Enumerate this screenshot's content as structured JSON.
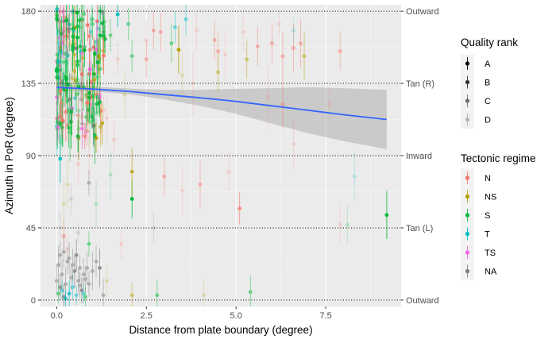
{
  "chart_data": {
    "type": "scatter",
    "xlabel": "Distance from plate boundary (degree)",
    "ylabel": "Azimuth in PoR (degree)",
    "xlim": [
      -0.45,
      9.6
    ],
    "ylim": [
      -4,
      184
    ],
    "x_ticks": [
      0.0,
      2.5,
      5.0,
      7.5
    ],
    "x_tick_labels": [
      "0.0",
      "2.5",
      "5.0",
      "7.5"
    ],
    "y_ticks": [
      0,
      45,
      90,
      135,
      180
    ],
    "y_tick_labels": [
      "0",
      "45",
      "90",
      "135",
      "180"
    ],
    "grid": true,
    "reference_lines": [
      {
        "y": 0,
        "label": "Outward"
      },
      {
        "y": 45,
        "label": "Tan (L)"
      },
      {
        "y": 90,
        "label": "Inward"
      },
      {
        "y": 135,
        "label": "Tan (R)"
      },
      {
        "y": 180,
        "label": "Outward"
      }
    ],
    "trend": {
      "x": [
        0.0,
        1.0,
        2.0,
        3.0,
        4.0,
        5.0,
        6.0,
        7.0,
        8.0,
        9.2
      ],
      "y": [
        132.5,
        131.5,
        130.0,
        128.0,
        126.0,
        123.8,
        121.0,
        118.3,
        115.5,
        112.5
      ],
      "ci_low": [
        130.5,
        130.0,
        128.2,
        125.0,
        121.0,
        116.0,
        110.0,
        104.0,
        99.0,
        94.0
      ],
      "ci_high": [
        134.5,
        133.0,
        131.8,
        131.0,
        131.0,
        131.6,
        132.0,
        132.6,
        132.0,
        131.0
      ],
      "color": "#3366FF"
    },
    "legend_quality": {
      "title": "Quality rank",
      "items": [
        "A",
        "B",
        "C",
        "D"
      ],
      "opacities": [
        1.0,
        0.8,
        0.55,
        0.25
      ],
      "position": "right"
    },
    "legend_regime": {
      "title": "Tectonic regime",
      "items": [
        "N",
        "NS",
        "S",
        "T",
        "TS",
        "NA"
      ],
      "colors": [
        "#F8766D",
        "#B79F00",
        "#00BA38",
        "#00BFC4",
        "#F564E3",
        "#7F7F7F"
      ],
      "position": "right"
    },
    "points": [
      {
        "x": 9.2,
        "y": 53,
        "err": 15,
        "regime": "S",
        "q": "A"
      },
      {
        "x": 2.1,
        "y": 63,
        "err": 12,
        "regime": "S",
        "q": "A"
      },
      {
        "x": 2.1,
        "y": 80,
        "err": 15,
        "regime": "NS",
        "q": "B"
      },
      {
        "x": 2.1,
        "y": 3,
        "err": 8,
        "regime": "NS",
        "q": "C"
      },
      {
        "x": 5.1,
        "y": 57,
        "err": 10,
        "regime": "N",
        "q": "B"
      },
      {
        "x": 4.0,
        "y": 72,
        "err": 15,
        "regime": "N",
        "q": "C"
      },
      {
        "x": 3.0,
        "y": 77,
        "err": 12,
        "regime": "N",
        "q": "C"
      },
      {
        "x": 3.5,
        "y": 68,
        "err": 15,
        "regime": "N",
        "q": "D"
      },
      {
        "x": 5.4,
        "y": 5,
        "err": 10,
        "regime": "S",
        "q": "C"
      },
      {
        "x": 2.8,
        "y": 3,
        "err": 10,
        "regime": "S",
        "q": "C"
      },
      {
        "x": 4.1,
        "y": 3,
        "err": 10,
        "regime": "NS",
        "q": "D"
      },
      {
        "x": 0.2,
        "y": 40,
        "err": 10,
        "regime": "N",
        "q": "C"
      },
      {
        "x": 0.9,
        "y": 35,
        "err": 8,
        "regime": "S",
        "q": "C"
      },
      {
        "x": 1.8,
        "y": 35,
        "err": 10,
        "regime": "N",
        "q": "D"
      },
      {
        "x": 0.6,
        "y": 42,
        "err": 6,
        "regime": "NA",
        "q": "D"
      },
      {
        "x": 0.1,
        "y": 45,
        "err": 10,
        "regime": "NA",
        "q": "D"
      },
      {
        "x": 2.7,
        "y": 45,
        "err": 10,
        "regime": "NA",
        "q": "D"
      },
      {
        "x": 0.4,
        "y": 63,
        "err": 10,
        "regime": "NA",
        "q": "D"
      },
      {
        "x": 0.9,
        "y": 73,
        "err": 8,
        "regime": "NA",
        "q": "C"
      },
      {
        "x": 7.9,
        "y": 47,
        "err": 12,
        "regime": "N",
        "q": "D"
      },
      {
        "x": 8.1,
        "y": 47,
        "err": 12,
        "regime": "S",
        "q": "D"
      },
      {
        "x": 8.3,
        "y": 77,
        "err": 15,
        "regime": "T",
        "q": "D"
      },
      {
        "x": 4.8,
        "y": 80,
        "err": 12,
        "regime": "N",
        "q": "D"
      },
      {
        "x": 6.3,
        "y": 122,
        "err": 15,
        "regime": "N",
        "q": "C"
      },
      {
        "x": 6.6,
        "y": 97,
        "err": 15,
        "regime": "N",
        "q": "D"
      },
      {
        "x": 7.6,
        "y": 122,
        "err": 12,
        "regime": "N",
        "q": "D"
      },
      {
        "x": 7.9,
        "y": 155,
        "err": 12,
        "regime": "N",
        "q": "C"
      },
      {
        "x": 5.9,
        "y": 127,
        "err": 20,
        "regime": "N",
        "q": "D"
      },
      {
        "x": 4.5,
        "y": 155,
        "err": 12,
        "regime": "N",
        "q": "C"
      },
      {
        "x": 5.6,
        "y": 158,
        "err": 12,
        "regime": "N",
        "q": "C"
      },
      {
        "x": 6.0,
        "y": 160,
        "err": 12,
        "regime": "N",
        "q": "C"
      },
      {
        "x": 6.3,
        "y": 152,
        "err": 15,
        "regime": "N",
        "q": "C"
      },
      {
        "x": 6.6,
        "y": 157,
        "err": 15,
        "regime": "N",
        "q": "C"
      },
      {
        "x": 6.8,
        "y": 160,
        "err": 15,
        "regime": "N",
        "q": "C"
      },
      {
        "x": 6.9,
        "y": 152,
        "err": 15,
        "regime": "NS",
        "q": "C"
      },
      {
        "x": 5.3,
        "y": 150,
        "err": 12,
        "regime": "NS",
        "q": "C"
      },
      {
        "x": 3.4,
        "y": 156,
        "err": 15,
        "regime": "NS",
        "q": "A"
      },
      {
        "x": 3.5,
        "y": 140,
        "err": 15,
        "regime": "NS",
        "q": "D"
      },
      {
        "x": 4.4,
        "y": 162,
        "err": 12,
        "regime": "N",
        "q": "C"
      },
      {
        "x": 4.5,
        "y": 142,
        "err": 12,
        "regime": "NS",
        "q": "C"
      },
      {
        "x": 2.5,
        "y": 150,
        "err": 12,
        "regime": "N",
        "q": "C"
      },
      {
        "x": 2.0,
        "y": 172,
        "err": 10,
        "regime": "S",
        "q": "C"
      },
      {
        "x": 2.1,
        "y": 152,
        "err": 10,
        "regime": "S",
        "q": "C"
      },
      {
        "x": 2.5,
        "y": 162,
        "err": 12,
        "regime": "N",
        "q": "D"
      },
      {
        "x": 2.7,
        "y": 168,
        "err": 12,
        "regime": "N",
        "q": "C"
      },
      {
        "x": 2.9,
        "y": 167,
        "err": 12,
        "regime": "N",
        "q": "C"
      },
      {
        "x": 3.2,
        "y": 160,
        "err": 12,
        "regime": "S",
        "q": "C"
      },
      {
        "x": 3.3,
        "y": 170,
        "err": 10,
        "regime": "T",
        "q": "C"
      },
      {
        "x": 3.6,
        "y": 175,
        "err": 10,
        "regime": "T",
        "q": "C"
      },
      {
        "x": 3.9,
        "y": 168,
        "err": 12,
        "regime": "N",
        "q": "D"
      },
      {
        "x": 1.7,
        "y": 178,
        "err": 8,
        "regime": "T",
        "q": "A"
      },
      {
        "x": 1.5,
        "y": 165,
        "err": 10,
        "regime": "S",
        "q": "C"
      },
      {
        "x": 1.3,
        "y": 167,
        "err": 10,
        "regime": "S",
        "q": "C"
      },
      {
        "x": 1.0,
        "y": 172,
        "err": 10,
        "regime": "S",
        "q": "C"
      },
      {
        "x": 1.7,
        "y": 150,
        "err": 10,
        "regime": "N",
        "q": "D"
      },
      {
        "x": 6.2,
        "y": 172,
        "err": 8,
        "regime": "N",
        "q": "D"
      },
      {
        "x": 6.6,
        "y": 168,
        "err": 8,
        "regime": "T",
        "q": "D"
      },
      {
        "x": 5.2,
        "y": 167,
        "err": 12,
        "regime": "N",
        "q": "D"
      },
      {
        "x": 4.7,
        "y": 153,
        "err": 15,
        "regime": "N",
        "q": "D"
      },
      {
        "x": 3.8,
        "y": 135,
        "err": 20,
        "regime": "N",
        "q": "D"
      },
      {
        "x": 1.2,
        "y": 150,
        "err": 20,
        "regime": "NS",
        "q": "C"
      },
      {
        "x": 1.4,
        "y": 113,
        "err": 15,
        "regime": "N",
        "q": "D"
      },
      {
        "x": 1.9,
        "y": 128,
        "err": 15,
        "regime": "NS",
        "q": "D"
      },
      {
        "x": 1.6,
        "y": 100,
        "err": 12,
        "regime": "N",
        "q": "D"
      },
      {
        "x": 1.0,
        "y": 127,
        "err": 20,
        "regime": "S",
        "q": "B"
      },
      {
        "x": 0.1,
        "y": 88,
        "err": 15,
        "regime": "T",
        "q": "A"
      },
      {
        "x": 0.2,
        "y": 60,
        "err": 15,
        "regime": "NS",
        "q": "D"
      },
      {
        "x": 0.3,
        "y": 72,
        "err": 15,
        "regime": "NS",
        "q": "D"
      },
      {
        "x": 0.6,
        "y": 85,
        "err": 12,
        "regime": "N",
        "q": "D"
      },
      {
        "x": 0.9,
        "y": 90,
        "err": 12,
        "regime": "N",
        "q": "D"
      },
      {
        "x": 1.1,
        "y": 60,
        "err": 15,
        "regime": "S",
        "q": "D"
      },
      {
        "x": 1.5,
        "y": 78,
        "err": 15,
        "regime": "S",
        "q": "D"
      },
      {
        "x": 0.0,
        "y": 12,
        "err": 10,
        "regime": "NA",
        "q": "C"
      },
      {
        "x": 0.05,
        "y": 22,
        "err": 12,
        "regime": "NA",
        "q": "C"
      },
      {
        "x": 0.1,
        "y": 8,
        "err": 8,
        "regime": "NA",
        "q": "B"
      },
      {
        "x": 0.15,
        "y": 16,
        "err": 10,
        "regime": "NA",
        "q": "C"
      },
      {
        "x": 0.2,
        "y": 2,
        "err": 8,
        "regime": "NA",
        "q": "B"
      },
      {
        "x": 0.25,
        "y": 10,
        "err": 10,
        "regime": "NA",
        "q": "C"
      },
      {
        "x": 0.3,
        "y": 24,
        "err": 8,
        "regime": "NA",
        "q": "C"
      },
      {
        "x": 0.35,
        "y": 4,
        "err": 8,
        "regime": "T",
        "q": "B"
      },
      {
        "x": 0.4,
        "y": 14,
        "err": 8,
        "regime": "NA",
        "q": "C"
      },
      {
        "x": 0.45,
        "y": 8,
        "err": 8,
        "regime": "T",
        "q": "C"
      },
      {
        "x": 0.5,
        "y": 18,
        "err": 10,
        "regime": "NA",
        "q": "B"
      },
      {
        "x": 0.55,
        "y": 3,
        "err": 6,
        "regime": "T",
        "q": "C"
      },
      {
        "x": 0.6,
        "y": 12,
        "err": 8,
        "regime": "NA",
        "q": "C"
      },
      {
        "x": 0.65,
        "y": 20,
        "err": 8,
        "regime": "NA",
        "q": "C"
      },
      {
        "x": 0.7,
        "y": 6,
        "err": 8,
        "regime": "NA",
        "q": "B"
      },
      {
        "x": 0.75,
        "y": 16,
        "err": 10,
        "regime": "NA",
        "q": "C"
      },
      {
        "x": 0.8,
        "y": 2,
        "err": 6,
        "regime": "S",
        "q": "C"
      },
      {
        "x": 0.85,
        "y": 20,
        "err": 10,
        "regime": "NA",
        "q": "C"
      },
      {
        "x": 0.9,
        "y": 10,
        "err": 8,
        "regime": "NA",
        "q": "C"
      },
      {
        "x": 1.0,
        "y": 18,
        "err": 12,
        "regime": "NA",
        "q": "C"
      },
      {
        "x": 1.1,
        "y": 24,
        "err": 10,
        "regime": "NA",
        "q": "C"
      },
      {
        "x": 1.2,
        "y": 20,
        "err": 12,
        "regime": "NA",
        "q": "B"
      },
      {
        "x": 1.3,
        "y": 3,
        "err": 10,
        "regime": "NA",
        "q": "C"
      },
      {
        "x": 1.4,
        "y": 12,
        "err": 10,
        "regime": "NS",
        "q": "D"
      },
      {
        "x": 0.05,
        "y": 4,
        "err": 6,
        "regime": "S",
        "q": "C"
      },
      {
        "x": 0.1,
        "y": 28,
        "err": 8,
        "regime": "NA",
        "q": "C"
      },
      {
        "x": 0.2,
        "y": 30,
        "err": 10,
        "regime": "NA",
        "q": "C"
      },
      {
        "x": 0.3,
        "y": 32,
        "err": 8,
        "regime": "N",
        "q": "D"
      },
      {
        "x": 0.15,
        "y": 6,
        "err": 6,
        "regime": "T",
        "q": "C"
      },
      {
        "x": 0.25,
        "y": 1,
        "err": 5,
        "regime": "T",
        "q": "B"
      },
      {
        "x": 0.35,
        "y": 26,
        "err": 10,
        "regime": "NA",
        "q": "C"
      },
      {
        "x": 0.45,
        "y": 22,
        "err": 10,
        "regime": "NA",
        "q": "C"
      },
      {
        "x": 0.55,
        "y": 28,
        "err": 10,
        "regime": "NA",
        "q": "B"
      },
      {
        "x": 0.65,
        "y": 9,
        "err": 8,
        "regime": "NA",
        "q": "C"
      },
      {
        "x": 0.75,
        "y": 4,
        "err": 6,
        "regime": "T",
        "q": "C"
      },
      {
        "x": 0.8,
        "y": 13,
        "err": 8,
        "regime": "NA",
        "q": "C"
      }
    ]
  }
}
